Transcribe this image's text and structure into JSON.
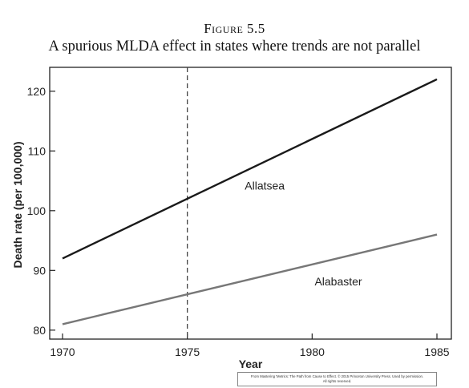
{
  "figure": {
    "label": "Figure 5.5",
    "title": "A spurious MLDA effect in states where trends are not parallel",
    "credit_line1": "From Mastering 'Metrics: The Path from Cause to Effect. © 2015 Princeton University Press. Used by permission.",
    "credit_line2": "All rights reserved."
  },
  "colors": {
    "allatsea": "#1a1a1a",
    "alabaster": "#777777",
    "axis": "#222222",
    "reference_line": "#444444"
  },
  "chart_data": {
    "type": "line",
    "title": "A spurious MLDA effect in states where trends are not parallel",
    "xlabel": "Year",
    "ylabel": "Death rate (per 100,000)",
    "xlim": [
      1970,
      1985
    ],
    "ylim": [
      78.5,
      124
    ],
    "xticks": [
      1970,
      1975,
      1980,
      1985
    ],
    "yticks": [
      80,
      90,
      100,
      110,
      120
    ],
    "grid": false,
    "legend": "none",
    "reference_line": {
      "x": 1975,
      "style": "dashed"
    },
    "series": [
      {
        "name": "Allatsea",
        "x": [
          1970,
          1985
        ],
        "values": [
          92,
          122
        ]
      },
      {
        "name": "Alabaster",
        "x": [
          1970,
          1985
        ],
        "values": [
          81,
          96
        ]
      }
    ],
    "annotations": [
      {
        "text": "Allatsea",
        "x": 1977.3,
        "y": 103.5
      },
      {
        "text": "Alabaster",
        "x": 1980.1,
        "y": 87.5
      }
    ]
  }
}
